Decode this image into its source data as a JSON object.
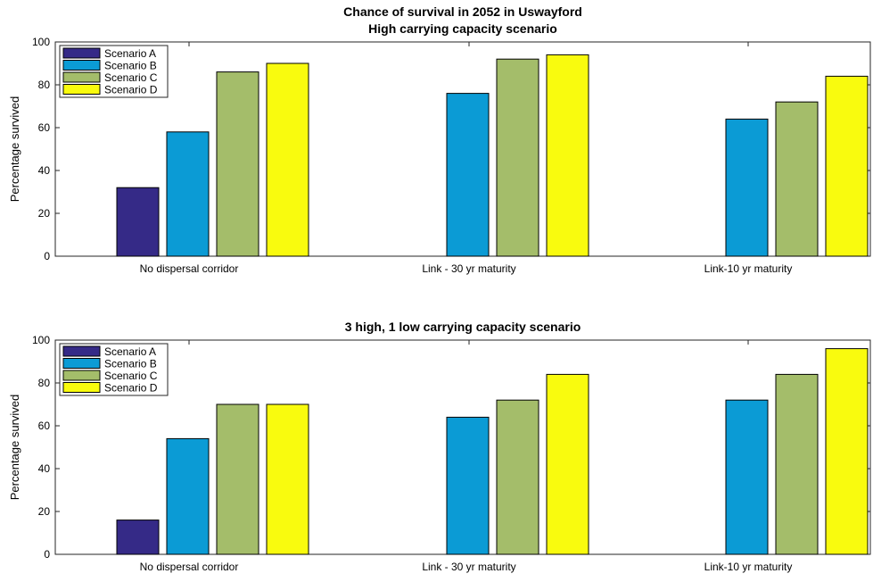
{
  "chart_data": [
    {
      "type": "bar",
      "title": "Chance of survival in 2052 in Uswayford",
      "subtitle": "High carrying capacity scenario",
      "xlabel": "",
      "ylabel": "Percentage survived",
      "ylim": [
        0,
        100
      ],
      "yticks": [
        0,
        20,
        40,
        60,
        80,
        100
      ],
      "grid": false,
      "legend_position": "top-left",
      "categories": [
        "No dispersal corridor",
        "Link - 30 yr maturity",
        "Link-10 yr maturity"
      ],
      "series": [
        {
          "name": "Scenario A",
          "color": "#352a87",
          "values": [
            32,
            0,
            0
          ]
        },
        {
          "name": "Scenario B",
          "color": "#0b9bd5",
          "values": [
            58,
            76,
            64
          ]
        },
        {
          "name": "Scenario C",
          "color": "#a4bd6a",
          "values": [
            86,
            92,
            72
          ]
        },
        {
          "name": "Scenario D",
          "color": "#f9fb0e",
          "values": [
            90,
            94,
            84
          ]
        }
      ]
    },
    {
      "type": "bar",
      "title": "3 high, 1 low carrying capacity scenario",
      "subtitle": "",
      "xlabel": "",
      "ylabel": "Percentage survived",
      "ylim": [
        0,
        100
      ],
      "yticks": [
        0,
        20,
        40,
        60,
        80,
        100
      ],
      "grid": false,
      "legend_position": "top-left",
      "categories": [
        "No dispersal corridor",
        "Link - 30 yr maturity",
        "Link-10 yr maturity"
      ],
      "series": [
        {
          "name": "Scenario A",
          "color": "#352a87",
          "values": [
            16,
            0,
            0
          ]
        },
        {
          "name": "Scenario B",
          "color": "#0b9bd5",
          "values": [
            54,
            64,
            72
          ]
        },
        {
          "name": "Scenario C",
          "color": "#a4bd6a",
          "values": [
            70,
            72,
            84
          ]
        },
        {
          "name": "Scenario D",
          "color": "#f9fb0e",
          "values": [
            70,
            84,
            96
          ]
        }
      ]
    }
  ]
}
